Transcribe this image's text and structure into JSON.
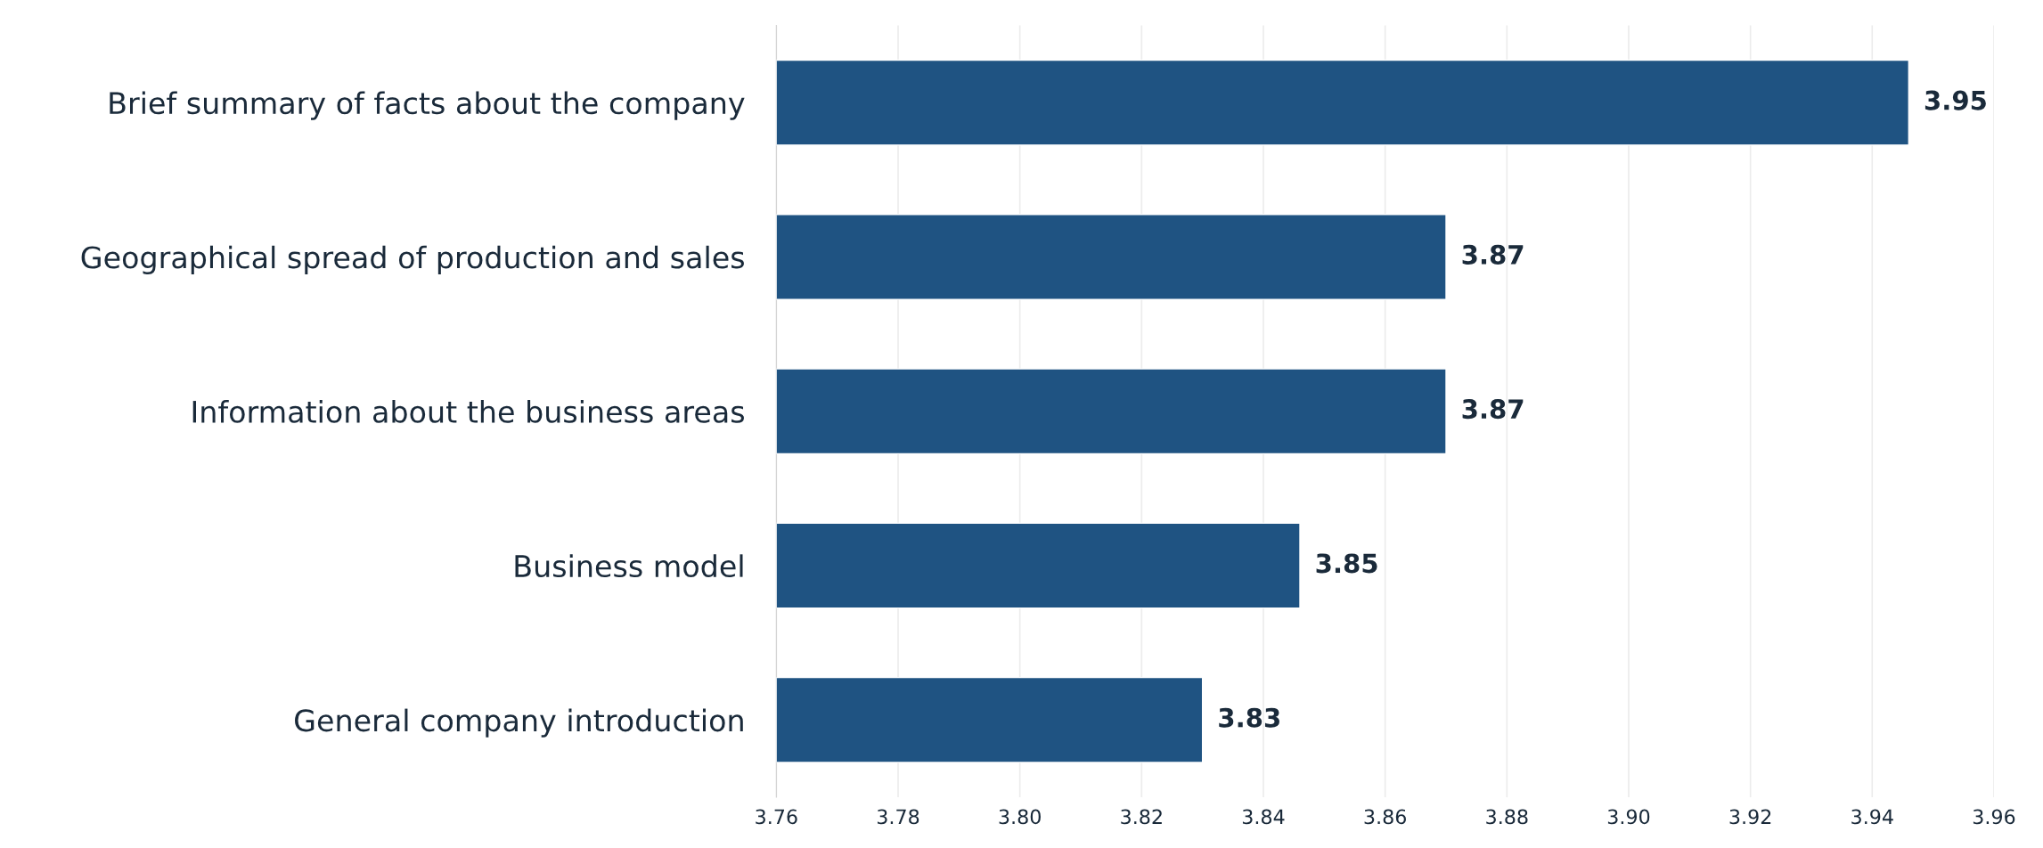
{
  "chart_data": {
    "type": "bar",
    "orientation": "horizontal",
    "categories": [
      "Brief summary of facts about the company",
      "Geographical spread of production and sales",
      "Information about the business areas",
      "Business model",
      "General company introduction"
    ],
    "values": [
      3.946,
      3.87,
      3.87,
      3.846,
      3.83
    ],
    "value_labels": [
      "3.95",
      "3.87",
      "3.87",
      "3.85",
      "3.83"
    ],
    "color": "#1f5382",
    "xlim": [
      3.76,
      3.96
    ],
    "xticks": [
      "3.76",
      "3.78",
      "3.80",
      "3.82",
      "3.84",
      "3.86",
      "3.88",
      "3.90",
      "3.92",
      "3.94",
      "3.96"
    ],
    "grid": "x",
    "legend": false
  }
}
